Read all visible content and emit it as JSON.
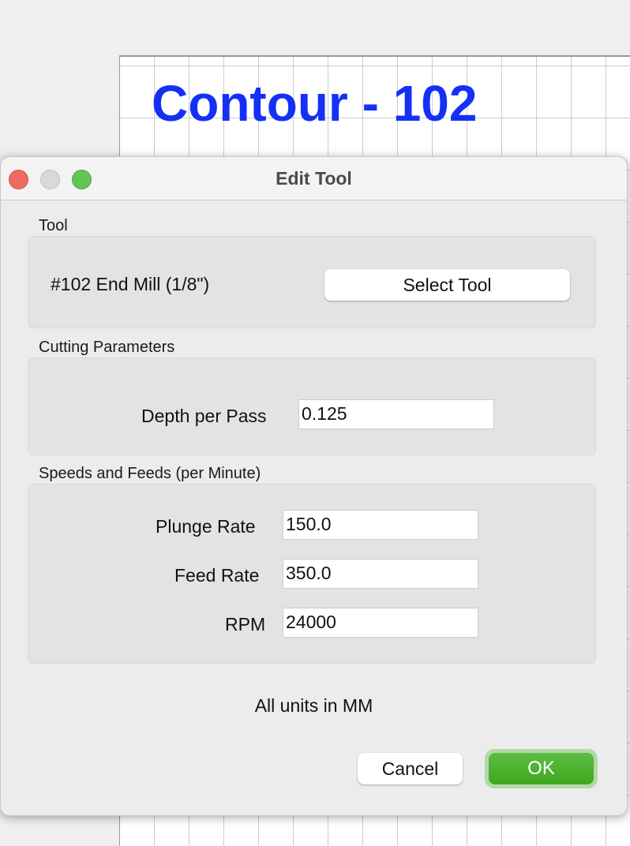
{
  "background": {
    "canvas_title": "Contour - 102"
  },
  "dialog": {
    "title": "Edit Tool",
    "tool": {
      "section_label": "Tool",
      "current_tool": "#102 End Mill (1/8\")",
      "select_button": "Select Tool"
    },
    "cutting": {
      "section_label": "Cutting Parameters",
      "depth_label": "Depth per Pass",
      "depth_value": "0.125"
    },
    "speeds": {
      "section_label": "Speeds and Feeds (per Minute)",
      "plunge_label": "Plunge Rate",
      "plunge_value": "150.0",
      "feed_label": "Feed Rate",
      "feed_value": "350.0",
      "rpm_label": "RPM",
      "rpm_value": "24000"
    },
    "units_note": "All units in MM",
    "cancel_label": "Cancel",
    "ok_label": "OK"
  },
  "colors": {
    "accent": "#3fa81f",
    "canvas_title": "#1530f5",
    "close": "#ec6a5e",
    "zoom": "#61c554"
  }
}
